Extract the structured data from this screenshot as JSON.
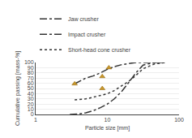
{
  "chart_data": {
    "type": "line",
    "xlabel": "Particle size [mm]",
    "ylabel": "Cumulative passing [mass-%]",
    "log": "x",
    "xlim": [
      1,
      100
    ],
    "xticks": [
      1,
      10,
      100
    ],
    "ylim": [
      0,
      100
    ],
    "yticks": [
      0,
      10,
      20,
      30,
      40,
      50,
      60,
      70,
      80,
      90,
      100
    ],
    "grid": "y",
    "legend": "upper left",
    "series": [
      {
        "name": "Jaw crusher",
        "color": "#333333",
        "line_style": "dashdot",
        "x": [
          3.0,
          4.0,
          5.0,
          6.3,
          8.0,
          10.0,
          12.5,
          16.0,
          20.0,
          25.0,
          31.5,
          45.0,
          63.0
        ],
        "values": [
          0,
          1,
          3,
          7,
          13,
          20,
          30,
          45,
          62,
          80,
          95,
          100,
          100
        ]
      },
      {
        "name": "Impact crusher",
        "color": "#333333",
        "line_style": "dashdot",
        "x": [
          3.5,
          5.0,
          6.3,
          8.0,
          10.0,
          12.5,
          16.0,
          20.0,
          25.0,
          31.5,
          45.0,
          63.0
        ],
        "values": [
          59,
          70,
          74,
          80,
          87,
          92,
          96,
          98,
          100,
          100,
          100,
          100
        ]
      },
      {
        "name": "Short-head cone crusher",
        "color": "#333333",
        "line_style": "dot",
        "x": [
          3.5,
          5.0,
          6.3,
          8.0,
          10.0,
          12.5,
          16.0,
          20.0,
          25.0,
          31.5,
          45.0,
          63.0
        ],
        "values": [
          28,
          30,
          33,
          36,
          40,
          46,
          55,
          64,
          75,
          88,
          97,
          100
        ]
      },
      {
        "type": "scatter",
        "marker": "triangle-up",
        "color": "#c8962a",
        "x": [
          10.5
        ],
        "values": [
          90
        ]
      },
      {
        "type": "scatter",
        "marker": "triangle-up",
        "color": "#c8962a",
        "x": [
          3.5,
          8.5
        ],
        "values": [
          59,
          73
        ]
      },
      {
        "type": "scatter",
        "marker": "triangle-up",
        "color": "#c8962a",
        "x": [
          8.5
        ],
        "values": [
          50
        ]
      }
    ]
  }
}
